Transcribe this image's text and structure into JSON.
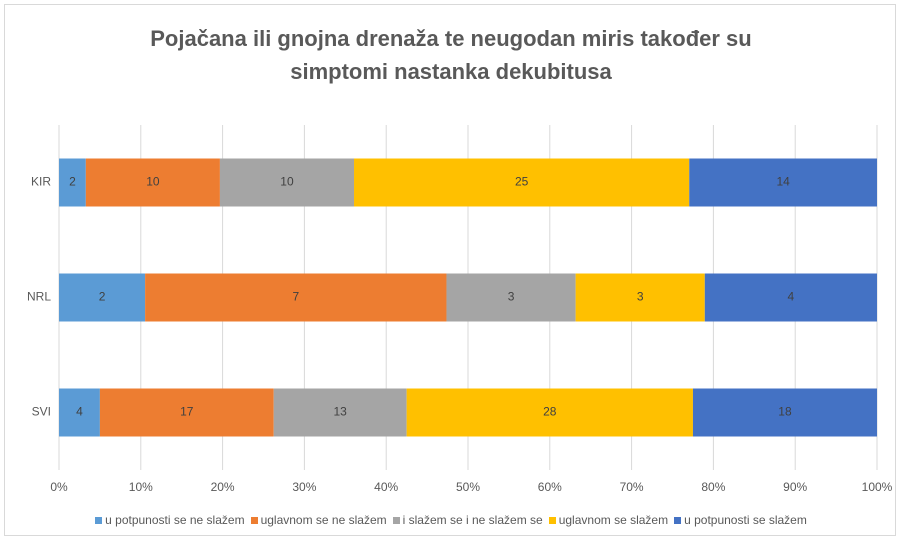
{
  "chart_data": {
    "type": "stacked-bar-100",
    "title": "Pojačana ili gnojna drenaža te neugodan miris također su simptomi nastanka dekubitusa",
    "orientation": "horizontal",
    "categories": [
      "KIR",
      "NRL",
      "SVI"
    ],
    "series": [
      {
        "name": "u potpunosti se ne slažem",
        "color": "#5b9bd5",
        "values": [
          2,
          2,
          4
        ]
      },
      {
        "name": "uglavnom se ne slažem",
        "color": "#ed7d31",
        "values": [
          10,
          7,
          17
        ]
      },
      {
        "name": "i slažem se i ne slažem se",
        "color": "#a5a5a5",
        "values": [
          10,
          3,
          13
        ]
      },
      {
        "name": "uglavnom se slažem",
        "color": "#ffc000",
        "values": [
          25,
          3,
          28
        ]
      },
      {
        "name": "u potpunosti se slažem",
        "color": "#4472c4",
        "values": [
          14,
          4,
          18
        ]
      }
    ],
    "xlim": [
      0,
      100
    ],
    "xticks": [
      {
        "value": 0,
        "label": "0%"
      },
      {
        "value": 10,
        "label": "10%"
      },
      {
        "value": 20,
        "label": "20%"
      },
      {
        "value": 30,
        "label": "30%"
      },
      {
        "value": 40,
        "label": "40%"
      },
      {
        "value": 50,
        "label": "50%"
      },
      {
        "value": 60,
        "label": "60%"
      },
      {
        "value": 70,
        "label": "70%"
      },
      {
        "value": 80,
        "label": "80%"
      },
      {
        "value": 90,
        "label": "90%"
      },
      {
        "value": 100,
        "label": "100%"
      }
    ],
    "grid": true,
    "legend": "bottom"
  }
}
